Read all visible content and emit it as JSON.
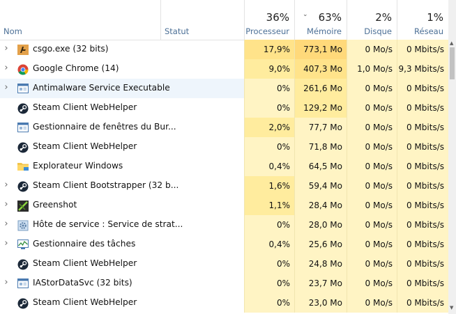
{
  "columns": {
    "name": "Nom",
    "status": "Statut",
    "cpu": {
      "label": "Processeur",
      "percent": "36%"
    },
    "memory": {
      "label": "Mémoire",
      "percent": "63%"
    },
    "disk": {
      "label": "Disque",
      "percent": "2%"
    },
    "network": {
      "label": "Réseau",
      "percent": "1%"
    }
  },
  "colors": {
    "header_label": "#4b6f96",
    "selected_row": "#eef5fc",
    "heat_light": "#fff4c4",
    "heat_mid": "#ffec9e",
    "heat_strong": "#ffe38a",
    "heat_max": "#ffd97a"
  },
  "processes": [
    {
      "name": "csgo.exe (32 bits)",
      "icon": "csgo-icon",
      "expand": true,
      "selected": false,
      "cpu": "17,9%",
      "memory": "773,1 Mo",
      "disk": "0 Mo/s",
      "network": "0 Mbits/s",
      "heat": [
        "heat_strong",
        "heat_max",
        "heat_light",
        "heat_light"
      ]
    },
    {
      "name": "Google Chrome (14)",
      "icon": "chrome-icon",
      "expand": true,
      "selected": false,
      "cpu": "9,0%",
      "memory": "407,3 Mo",
      "disk": "1,0 Mo/s",
      "network": "9,3 Mbits/s",
      "heat": [
        "heat_mid",
        "heat_strong",
        "heat_light",
        "heat_light"
      ]
    },
    {
      "name": "Antimalware Service Executable",
      "icon": "window-app-icon",
      "expand": true,
      "selected": true,
      "cpu": "0%",
      "memory": "261,6 Mo",
      "disk": "0 Mo/s",
      "network": "0 Mbits/s",
      "heat": [
        "heat_light",
        "heat_mid",
        "heat_light",
        "heat_light"
      ]
    },
    {
      "name": "Steam Client WebHelper",
      "icon": "steam-icon",
      "expand": false,
      "selected": false,
      "cpu": "0%",
      "memory": "129,2 Mo",
      "disk": "0 Mo/s",
      "network": "0 Mbits/s",
      "heat": [
        "heat_light",
        "heat_mid",
        "heat_light",
        "heat_light"
      ]
    },
    {
      "name": "Gestionnaire de fenêtres du Bur...",
      "icon": "window-app-icon",
      "expand": false,
      "selected": false,
      "cpu": "2,0%",
      "memory": "77,7 Mo",
      "disk": "0 Mo/s",
      "network": "0 Mbits/s",
      "heat": [
        "heat_mid",
        "heat_light",
        "heat_light",
        "heat_light"
      ]
    },
    {
      "name": "Steam Client WebHelper",
      "icon": "steam-icon",
      "expand": false,
      "selected": false,
      "cpu": "0%",
      "memory": "71,8 Mo",
      "disk": "0 Mo/s",
      "network": "0 Mbits/s",
      "heat": [
        "heat_light",
        "heat_light",
        "heat_light",
        "heat_light"
      ]
    },
    {
      "name": "Explorateur Windows",
      "icon": "folder-icon",
      "expand": false,
      "selected": false,
      "cpu": "0,4%",
      "memory": "64,5 Mo",
      "disk": "0 Mo/s",
      "network": "0 Mbits/s",
      "heat": [
        "heat_light",
        "heat_light",
        "heat_light",
        "heat_light"
      ]
    },
    {
      "name": "Steam Client Bootstrapper (32 b...",
      "icon": "steam-icon",
      "expand": true,
      "selected": false,
      "cpu": "1,6%",
      "memory": "59,4 Mo",
      "disk": "0 Mo/s",
      "network": "0 Mbits/s",
      "heat": [
        "heat_mid",
        "heat_light",
        "heat_light",
        "heat_light"
      ]
    },
    {
      "name": "Greenshot",
      "icon": "greenshot-icon",
      "expand": true,
      "selected": false,
      "cpu": "1,1%",
      "memory": "28,4 Mo",
      "disk": "0 Mo/s",
      "network": "0 Mbits/s",
      "heat": [
        "heat_mid",
        "heat_light",
        "heat_light",
        "heat_light"
      ]
    },
    {
      "name": "Hôte de service : Service de strat...",
      "icon": "service-gear-icon",
      "expand": true,
      "selected": false,
      "cpu": "0%",
      "memory": "28,0 Mo",
      "disk": "0 Mo/s",
      "network": "0 Mbits/s",
      "heat": [
        "heat_light",
        "heat_light",
        "heat_light",
        "heat_light"
      ]
    },
    {
      "name": "Gestionnaire des tâches",
      "icon": "task-manager-icon",
      "expand": true,
      "selected": false,
      "cpu": "0,4%",
      "memory": "25,6 Mo",
      "disk": "0 Mo/s",
      "network": "0 Mbits/s",
      "heat": [
        "heat_light",
        "heat_light",
        "heat_light",
        "heat_light"
      ]
    },
    {
      "name": "Steam Client WebHelper",
      "icon": "steam-icon",
      "expand": false,
      "selected": false,
      "cpu": "0%",
      "memory": "24,8 Mo",
      "disk": "0 Mo/s",
      "network": "0 Mbits/s",
      "heat": [
        "heat_light",
        "heat_light",
        "heat_light",
        "heat_light"
      ]
    },
    {
      "name": "IAStorDataSvc (32 bits)",
      "icon": "window-app-icon",
      "expand": true,
      "selected": false,
      "cpu": "0%",
      "memory": "23,7 Mo",
      "disk": "0 Mo/s",
      "network": "0 Mbits/s",
      "heat": [
        "heat_light",
        "heat_light",
        "heat_light",
        "heat_light"
      ]
    },
    {
      "name": "Steam Client WebHelper",
      "icon": "steam-icon",
      "expand": false,
      "selected": false,
      "cpu": "0%",
      "memory": "23,0 Mo",
      "disk": "0 Mo/s",
      "network": "0 Mbits/s",
      "heat": [
        "heat_light",
        "heat_light",
        "heat_light",
        "heat_light"
      ]
    }
  ]
}
